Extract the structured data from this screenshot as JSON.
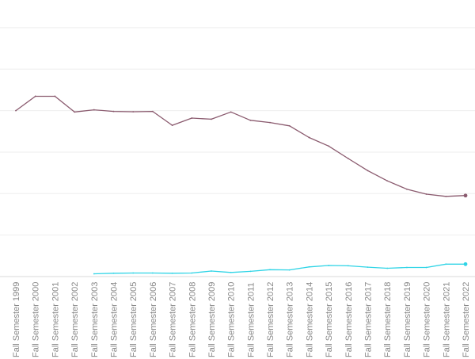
{
  "chart_data": {
    "type": "line",
    "title": "",
    "xlabel": "",
    "ylabel": "",
    "categories": [
      "Fall Semester 1999",
      "Fall Semester 2000",
      "Fall Semester 2001",
      "Fall Semester 2002",
      "Fall Semester 2003",
      "Fall Semester 2004",
      "Fall Semester 2005",
      "Fall Semester 2006",
      "Fall Semester 2007",
      "Fall Semester 2008",
      "Fall Semester 2009",
      "Fall Semester 2010",
      "Fall Semester 2011",
      "Fall Semester 2012",
      "Fall Semester 2013",
      "Fall Semester 2014",
      "Fall Semester 2015",
      "Fall Semester 2016",
      "Fall Semester 2017",
      "Fall Semester 2018",
      "Fall Semester 2019",
      "Fall Semester 2020",
      "Fall Semester 2021",
      "Fall Semester 2022"
    ],
    "ylim": [
      0,
      100
    ],
    "grid": true,
    "legend": "none",
    "series": [
      {
        "color": "#8a5a6e",
        "values": [
          60.0,
          65.2,
          65.2,
          59.5,
          60.3,
          59.7,
          59.6,
          59.7,
          54.7,
          57.3,
          56.9,
          59.5,
          56.5,
          55.7,
          54.5,
          50.3,
          47.2,
          42.7,
          38.3,
          34.6,
          31.6,
          29.8,
          29.0,
          29.3
        ]
      },
      {
        "color": "#2fd4e6",
        "values": [
          null,
          null,
          null,
          null,
          1.0,
          1.2,
          1.3,
          1.3,
          1.2,
          1.3,
          2.0,
          1.5,
          1.9,
          2.5,
          2.4,
          3.5,
          4.0,
          3.9,
          3.4,
          3.0,
          3.3,
          3.3,
          4.5,
          4.5
        ]
      }
    ]
  }
}
